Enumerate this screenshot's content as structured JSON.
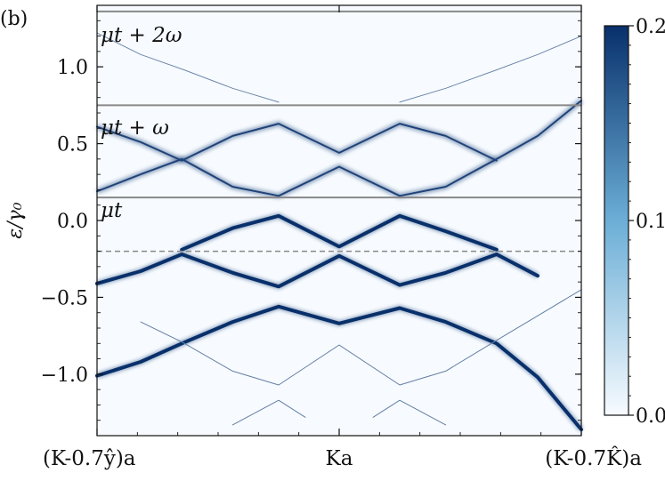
{
  "chart_data": {
    "type": "heatmap",
    "panel_label": "(b)",
    "ylabel": "ε/γ₀",
    "ylim": [
      -1.4,
      1.4
    ],
    "xlim": [
      0,
      1
    ],
    "yticks": [
      {
        "value": 1.0,
        "label": "1.0"
      },
      {
        "value": 0.5,
        "label": "0.5"
      },
      {
        "value": 0.0,
        "label": "0.0"
      },
      {
        "value": -0.5,
        "label": "−0.5"
      },
      {
        "value": -1.0,
        "label": "−1.0"
      }
    ],
    "xticks": [
      {
        "value": 0.0,
        "label": "(K-0.7ŷ)a"
      },
      {
        "value": 0.5,
        "label": "Ka"
      },
      {
        "value": 1.0,
        "label": "(K-0.7K̂)a"
      }
    ],
    "window_labels": [
      {
        "text": "μt + 2ω",
        "y": 1.22
      },
      {
        "text": "μt + ω",
        "y": 0.62
      },
      {
        "text": "μt",
        "y": 0.08
      }
    ],
    "window_boundaries": [
      1.36,
      0.75,
      0.15
    ],
    "fermi_level": -0.2,
    "colorbar": {
      "min": 0.0,
      "max": 0.2,
      "ticks": [
        {
          "value": 0.2,
          "label": "0.2"
        },
        {
          "value": 0.1,
          "label": "0.1"
        },
        {
          "value": 0.0,
          "label": "0.0"
        }
      ],
      "color_low": "#f7fbff",
      "color_high": "#08306b"
    },
    "bands": [
      {
        "x": [
          0,
          0.09,
          0.175,
          0.28,
          0.375,
          0.5,
          0.625,
          0.72,
          0.825,
          0.91,
          1.0
        ],
        "y": [
          -1.01,
          -0.92,
          -0.8,
          -0.66,
          -0.56,
          -0.67,
          -0.57,
          -0.66,
          -0.8,
          -1.02,
          -1.36
        ],
        "weight": 0.2
      },
      {
        "x": [
          0.09,
          0.175,
          0.28,
          0.375,
          0.5,
          0.625,
          0.72,
          0.825,
          0.91,
          1.0
        ],
        "y": [
          -0.66,
          -0.79,
          -0.98,
          -1.07,
          -0.81,
          -1.07,
          -0.98,
          -0.78,
          -0.62,
          -0.45
        ],
        "weight": 0.05
      },
      {
        "x": [
          0,
          0.09,
          0.175,
          0.28,
          0.375,
          0.5,
          0.625,
          0.72,
          0.825,
          0.91
        ],
        "y": [
          -0.41,
          -0.33,
          -0.22,
          -0.34,
          -0.43,
          -0.23,
          -0.42,
          -0.34,
          -0.22,
          -0.36
        ],
        "weight": 0.2
      },
      {
        "x": [
          0.175,
          0.28,
          0.375,
          0.5,
          0.625,
          0.72,
          0.825
        ],
        "y": [
          -0.19,
          -0.05,
          0.03,
          -0.17,
          0.03,
          -0.07,
          -0.19
        ],
        "weight": 0.2
      },
      {
        "x": [
          0,
          0.09,
          0.175,
          0.28,
          0.375,
          0.5,
          0.625,
          0.72,
          0.825,
          0.91,
          1.0
        ],
        "y": [
          0.19,
          0.3,
          0.4,
          0.22,
          0.16,
          0.35,
          0.16,
          0.22,
          0.4,
          0.55,
          0.78
        ],
        "weight": 0.15
      },
      {
        "x": [
          0,
          0.09,
          0.175,
          0.28,
          0.375,
          0.5,
          0.625,
          0.72,
          0.825
        ],
        "y": [
          0.61,
          0.51,
          0.39,
          0.55,
          0.63,
          0.44,
          0.63,
          0.55,
          0.39
        ],
        "weight": 0.15
      },
      {
        "x": [
          0.0,
          0.09,
          0.18,
          0.28,
          0.375
        ],
        "y": [
          1.22,
          1.08,
          0.98,
          0.86,
          0.77
        ],
        "weight": 0.04
      },
      {
        "x": [
          0.625,
          0.72,
          0.825,
          0.91,
          1.0
        ],
        "y": [
          0.77,
          0.86,
          0.98,
          1.08,
          1.2
        ],
        "weight": 0.04
      },
      {
        "x": [
          0.28,
          0.375,
          0.43
        ],
        "y": [
          -1.33,
          -1.17,
          -1.28
        ],
        "weight": 0.05
      },
      {
        "x": [
          0.57,
          0.625,
          0.72
        ],
        "y": [
          -1.28,
          -1.17,
          -1.33
        ],
        "weight": 0.05
      }
    ]
  }
}
